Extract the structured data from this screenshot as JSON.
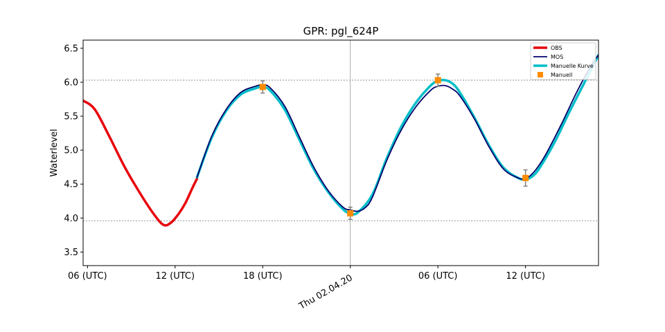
{
  "chart_data": {
    "type": "line",
    "title": "GPR: pgl_624P",
    "xlabel": "",
    "ylabel": "Waterlevel",
    "xlim": [
      -0.3,
      35.0
    ],
    "ylim": [
      3.3,
      6.62
    ],
    "x_unit": "hours since 06 (UTC)",
    "xticks": [
      {
        "x": 0,
        "label": "06 (UTC)",
        "rotated": false
      },
      {
        "x": 6,
        "label": "12 (UTC)",
        "rotated": false
      },
      {
        "x": 12,
        "label": "18 (UTC)",
        "rotated": false
      },
      {
        "x": 18,
        "label": "Thu 02.04.20",
        "rotated": true
      },
      {
        "x": 24,
        "label": "06 (UTC)",
        "rotated": false
      },
      {
        "x": 30,
        "label": "12 (UTC)",
        "rotated": false
      }
    ],
    "yticks": [
      3.5,
      4.0,
      4.5,
      5.0,
      5.5,
      6.0,
      6.5
    ],
    "hlines": [
      6.03,
      3.96
    ],
    "vlines": [
      18
    ],
    "series": [
      {
        "name": "OBS",
        "color": "#e8000b",
        "width": 3.5,
        "x": [
          -0.3,
          0.5,
          1.5,
          2.5,
          3.5,
          4.5,
          5.2,
          5.7,
          6.2,
          6.7,
          7.2,
          7.5
        ],
        "y": [
          5.73,
          5.6,
          5.2,
          4.77,
          4.4,
          4.07,
          3.9,
          3.93,
          4.05,
          4.22,
          4.45,
          4.58
        ]
      },
      {
        "name": "MOS",
        "color": "#00006b",
        "width": 1.8,
        "x": [
          7.5,
          8.5,
          9.5,
          10.5,
          11.5,
          12.0,
          12.5,
          13.5,
          14.5,
          15.5,
          16.5,
          17.5,
          18.0,
          18.5,
          19.0,
          19.5,
          20.5,
          21.5,
          22.5,
          23.5,
          24.0,
          24.5,
          25.0,
          25.5,
          26.5,
          27.5,
          28.5,
          29.5,
          30.0,
          30.5,
          31.0,
          31.5,
          32.5,
          33.5,
          34.5,
          35.0
        ],
        "y": [
          4.6,
          5.2,
          5.6,
          5.85,
          5.94,
          5.96,
          5.92,
          5.65,
          5.2,
          4.75,
          4.4,
          4.16,
          4.12,
          4.1,
          4.15,
          4.3,
          4.85,
          5.3,
          5.64,
          5.88,
          5.94,
          5.95,
          5.9,
          5.8,
          5.46,
          5.05,
          4.72,
          4.59,
          4.58,
          4.66,
          4.8,
          4.98,
          5.4,
          5.85,
          6.25,
          6.4
        ]
      },
      {
        "name": "Manuelle Kurve",
        "color": "#00bec8",
        "width": 3.5,
        "x": [
          7.5,
          8.5,
          9.5,
          10.5,
          11.5,
          12.0,
          12.5,
          13.5,
          14.5,
          15.5,
          16.5,
          17.5,
          18.0,
          18.5,
          19.5,
          20.5,
          21.5,
          22.5,
          23.5,
          24.0,
          24.5,
          25.0,
          25.5,
          26.5,
          27.5,
          28.5,
          29.5,
          30.0,
          30.5,
          31.0,
          32.0,
          33.0,
          34.0,
          35.0
        ],
        "y": [
          4.6,
          5.18,
          5.58,
          5.82,
          5.91,
          5.93,
          5.88,
          5.6,
          5.16,
          4.72,
          4.38,
          4.13,
          4.07,
          4.08,
          4.34,
          4.88,
          5.35,
          5.7,
          5.95,
          6.02,
          6.03,
          5.98,
          5.85,
          5.48,
          5.07,
          4.74,
          4.59,
          4.57,
          4.62,
          4.75,
          5.12,
          5.56,
          5.98,
          6.4
        ]
      }
    ],
    "manual_points": {
      "name": "Manuell",
      "color": "#ff8c00",
      "errorbar_color": "#808080",
      "x": [
        12,
        18,
        24,
        30
      ],
      "y": [
        5.93,
        4.07,
        6.03,
        4.59
      ],
      "err": [
        0.09,
        0.09,
        0.09,
        0.12
      ]
    },
    "legend": {
      "position": "top-right",
      "entries": [
        {
          "label": "OBS",
          "kind": "line",
          "color": "#e8000b"
        },
        {
          "label": "MOS",
          "kind": "line",
          "color": "#00006b"
        },
        {
          "label": "Manuelle Kurve",
          "kind": "line",
          "color": "#00bec8"
        },
        {
          "label": "Manuell",
          "kind": "marker",
          "color": "#ff8c00"
        }
      ]
    }
  }
}
